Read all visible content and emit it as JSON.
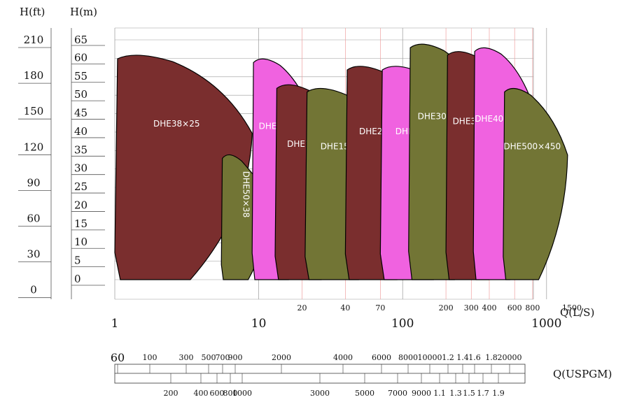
{
  "chart_data": {
    "type": "area",
    "title": "",
    "xlabel": "Q(L/S)",
    "x_scale": "log",
    "ylabel_left_ft": "H(ft)",
    "ylabel_left_m": "H(m)",
    "xlabel_bottom": "Q(USPGM)",
    "ylim_m": [
      0,
      65
    ],
    "xlim_ls": [
      1,
      1500
    ],
    "grid": true,
    "y_ticks_ft": [
      "210",
      "180",
      "150",
      "120",
      "90",
      "60",
      "30",
      "0"
    ],
    "y_ticks_m": [
      "65",
      "60",
      "55",
      "50",
      "45",
      "40",
      "35",
      "30",
      "25",
      "20",
      "15",
      "10",
      "5",
      "0"
    ],
    "x_ticks_major": [
      {
        "value": 1,
        "label": "1"
      },
      {
        "value": 10,
        "label": "10"
      },
      {
        "value": 100,
        "label": "100"
      },
      {
        "value": 1000,
        "label": "1000"
      }
    ],
    "x_ticks_minor": [
      {
        "value": 20,
        "label": "20"
      },
      {
        "value": 40,
        "label": "40"
      },
      {
        "value": 70,
        "label": "70"
      },
      {
        "value": 200,
        "label": "200"
      },
      {
        "value": 300,
        "label": "300"
      },
      {
        "value": 400,
        "label": "400"
      },
      {
        "value": 600,
        "label": "600"
      },
      {
        "value": 800,
        "label": "800"
      },
      {
        "value": 1500,
        "label": "1500"
      }
    ],
    "usgpm_top": [
      "60",
      "100",
      "300",
      "500",
      "700",
      "900",
      "2000",
      "4000",
      "6000",
      "8000",
      "10000",
      "1.2",
      "1.4",
      "1.6",
      "1.8",
      "20000"
    ],
    "usgpm_bottom": [
      "200",
      "400",
      "600",
      "800",
      "1000",
      "3000",
      "5000",
      "7000",
      "9000",
      "1.1",
      "1.3",
      "1.5",
      "1.7",
      "1.9"
    ],
    "colors": {
      "maroon": "#7a2e2e",
      "pink": "#f062e0",
      "olive": "#727535",
      "grid_red": "#f0a0a0",
      "grid_gray": "#999999"
    },
    "series": [
      {
        "name": "DHE38×25",
        "color": "maroon",
        "q_min": 1.0,
        "q_max": 9.0,
        "h_min": 0,
        "h_max": 61
      },
      {
        "name": "DHE50×38",
        "color": "olive",
        "q_min": 5.5,
        "q_max": 12.0,
        "h_min": 0,
        "h_max": 34
      },
      {
        "name": "DHE75×50",
        "color": "pink",
        "q_min": 9.0,
        "q_max": 26.0,
        "h_min": 0,
        "h_max": 60
      },
      {
        "name": "DHE100×75",
        "color": "maroon",
        "q_min": 13.0,
        "q_max": 50.0,
        "h_min": 0,
        "h_max": 53
      },
      {
        "name": "DHE150×100",
        "color": "olive",
        "q_min": 21.0,
        "q_max": 100.0,
        "h_min": 0,
        "h_max": 52
      },
      {
        "name": "DHE200×150",
        "color": "maroon",
        "q_min": 40.0,
        "q_max": 180.0,
        "h_min": 0,
        "h_max": 58
      },
      {
        "name": "DHE250×200",
        "color": "pink",
        "q_min": 70.0,
        "q_max": 330.0,
        "h_min": 0,
        "h_max": 58
      },
      {
        "name": "DHE300×250",
        "color": "olive",
        "q_min": 110.0,
        "q_max": 420.0,
        "h_min": 0,
        "h_max": 64
      },
      {
        "name": "DHE350×300",
        "color": "maroon",
        "q_min": 200.0,
        "q_max": 700.0,
        "h_min": 0,
        "h_max": 62
      },
      {
        "name": "DHE400×350",
        "color": "pink",
        "q_min": 310.0,
        "q_max": 900.0,
        "h_min": 0,
        "h_max": 63
      },
      {
        "name": "DHE500×450",
        "color": "olive",
        "q_min": 500.0,
        "q_max": 1400.0,
        "h_min": 0,
        "h_max": 52
      }
    ]
  }
}
